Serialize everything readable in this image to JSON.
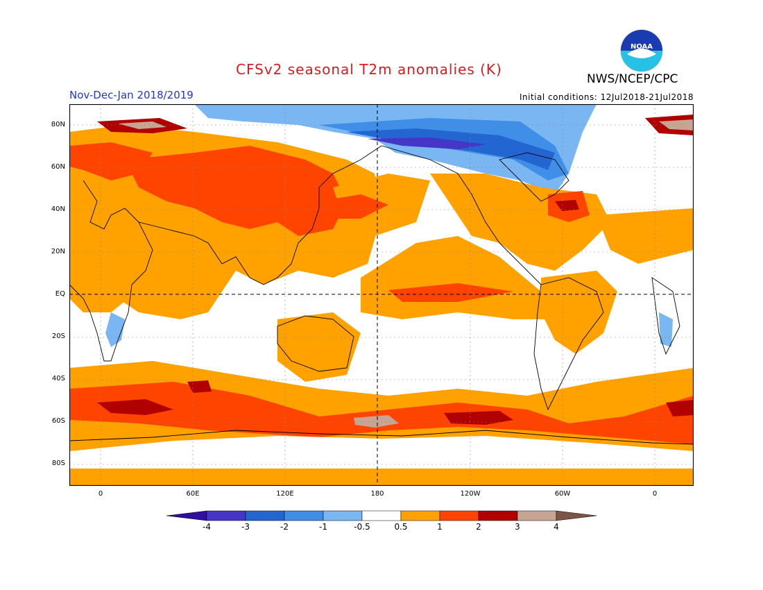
{
  "header": {
    "title": "CFSv2 seasonal T2m anomalies (K)",
    "agency": "NWS/NCEP/CPC",
    "period": "Nov-Dec-Jan 2018/2019",
    "initial_conditions": "Initial conditions: 12Jul2018-21Jul2018",
    "logo_text": "NOAA"
  },
  "axes": {
    "lat_labels": [
      "80N",
      "60N",
      "40N",
      "20N",
      "EQ",
      "20S",
      "40S",
      "60S",
      "80S"
    ],
    "lon_labels": [
      "0",
      "60E",
      "120E",
      "180",
      "120W",
      "60W",
      "0"
    ]
  },
  "colorbar": {
    "labels": [
      "-4",
      "-3",
      "-2",
      "-1",
      "-0.5",
      "0.5",
      "1",
      "2",
      "3",
      "4"
    ],
    "colors": [
      "#4536c7",
      "#2366d2",
      "#3f8ee8",
      "#79b6f2",
      "#ffffff",
      "#ffa200",
      "#ff4400",
      "#b00000",
      "#c8a493"
    ],
    "low_end_color": "#2f0ea0",
    "high_end_color": "#7d5548"
  },
  "palette": {
    "orange": "#ffa200",
    "red": "#ff4400",
    "darkred": "#b00000",
    "tan": "#c8a493",
    "blue_light": "#79b6f2",
    "blue": "#3f8ee8",
    "blue_dark": "#2366d2",
    "blue_deep": "#4536c7"
  }
}
